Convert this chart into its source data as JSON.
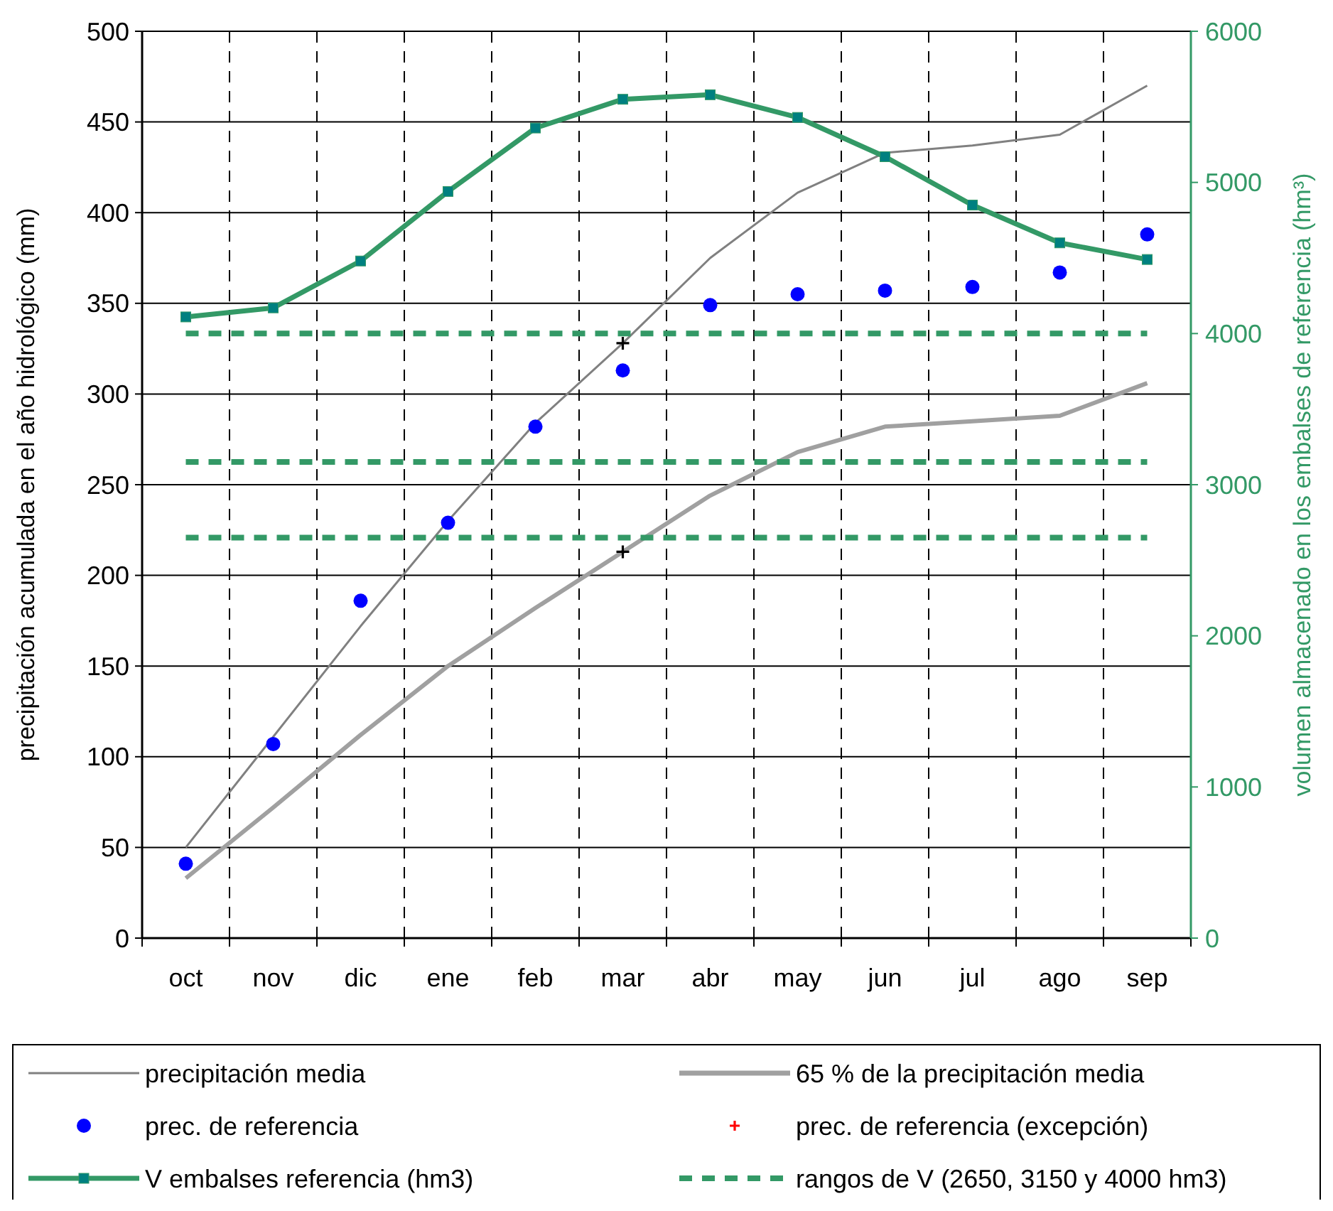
{
  "chart_data": {
    "type": "line",
    "categories": [
      "oct",
      "nov",
      "dic",
      "ene",
      "feb",
      "mar",
      "abr",
      "may",
      "jun",
      "jul",
      "ago",
      "sep"
    ],
    "ylabel": "precipitación acumulada en el año hidrológico (mm)",
    "y2label": "volumen almacenado en los embalses de referencia (hm³)",
    "ylim": [
      0,
      500
    ],
    "yticks": [
      0,
      50,
      100,
      150,
      200,
      250,
      300,
      350,
      400,
      450,
      500
    ],
    "y2lim": [
      0,
      6000
    ],
    "y2ticks": [
      0,
      1000,
      2000,
      3000,
      4000,
      5000,
      6000
    ],
    "grid": true,
    "legend": "bottom",
    "series": [
      {
        "name": "precipitación media",
        "color": "#808080",
        "marker": "none",
        "values": [
          50,
          111,
          172,
          230,
          284,
          328,
          375,
          411,
          433,
          437,
          443,
          470
        ]
      },
      {
        "name": "65 % de la precipitación media",
        "color": "#a0a0a0",
        "marker": "none",
        "values": [
          33,
          72,
          112,
          150,
          182,
          213,
          244,
          268,
          282,
          285,
          288,
          306
        ]
      },
      {
        "name": "prec. de referencia",
        "type": "scatter",
        "color": "#0000ff",
        "marker": "circle",
        "values": [
          41,
          107,
          186,
          229,
          282,
          313,
          349,
          355,
          357,
          359,
          367,
          388
        ]
      },
      {
        "name": "prec. de referencia (excepción)",
        "type": "scatter",
        "color": "#ff0000",
        "marker": "cross",
        "values": [
          null,
          null,
          null,
          null,
          null,
          null,
          null,
          null,
          null,
          null,
          null,
          null
        ]
      },
      {
        "name": "V embalses referencia (hm3)",
        "axis": "y2",
        "color": "#339966",
        "marker": "square",
        "values": [
          4110,
          4170,
          4480,
          4940,
          5360,
          5550,
          5580,
          5430,
          5170,
          4850,
          4600,
          4490
        ]
      },
      {
        "name": "rangos de V  (2650, 3150 y 4000 hm3)",
        "axis": "y2",
        "color": "#339966",
        "marker": "none",
        "line_style": "dashed",
        "values": [
          4000,
          4000,
          4000,
          4000,
          4000,
          4000,
          4000,
          4000,
          4000,
          4000,
          4000,
          4000
        ]
      },
      {
        "axis": "y2",
        "color": "#339966",
        "marker": "none",
        "line_style": "dashed",
        "values": [
          3150,
          3150,
          3150,
          3150,
          3150,
          3150,
          3150,
          3150,
          3150,
          3150,
          3150,
          3150
        ]
      },
      {
        "axis": "y2",
        "color": "#339966",
        "marker": "none",
        "line_style": "dashed",
        "values": [
          2650,
          2650,
          2650,
          2650,
          2650,
          2650,
          2650,
          2650,
          2650,
          2650,
          2650,
          2650
        ]
      },
      {
        "type": "scatter",
        "color": "#000000",
        "marker": "cross",
        "values": [
          null,
          null,
          null,
          null,
          null,
          328,
          null,
          null,
          null,
          null,
          null,
          null
        ]
      },
      {
        "type": "scatter",
        "color": "#000000",
        "marker": "cross",
        "values": [
          null,
          null,
          null,
          null,
          null,
          213,
          null,
          null,
          null,
          null,
          null,
          null
        ]
      }
    ]
  }
}
